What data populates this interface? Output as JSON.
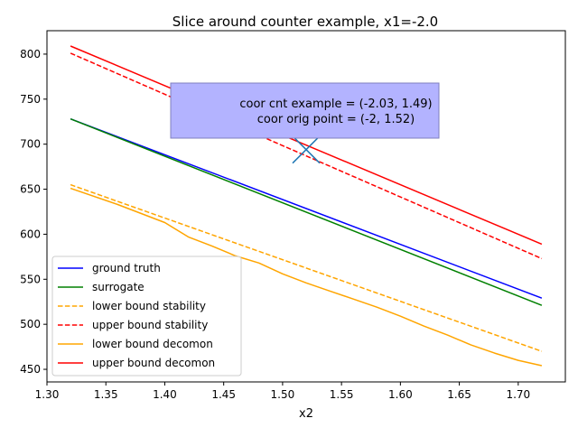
{
  "chart_data": {
    "type": "line",
    "title": "Slice around counter example, x1=-2.0",
    "xlabel": "x2",
    "ylabel": "",
    "xlim": [
      1.3,
      1.74
    ],
    "ylim": [
      436,
      826
    ],
    "xticks": [
      "1.30",
      "1.35",
      "1.40",
      "1.45",
      "1.50",
      "1.55",
      "1.60",
      "1.65",
      "1.70"
    ],
    "yticks": [
      "450",
      "500",
      "550",
      "600",
      "650",
      "700",
      "750",
      "800"
    ],
    "grid": false,
    "legend_position": "lower left",
    "series": [
      {
        "name": "ground truth",
        "color": "#0000ff",
        "dash": "solid",
        "x": [
          1.32,
          1.72
        ],
        "y": [
          728,
          529
        ]
      },
      {
        "name": "surrogate",
        "color": "#008000",
        "dash": "solid",
        "x": [
          1.32,
          1.72
        ],
        "y": [
          728,
          521
        ]
      },
      {
        "name": "lower bound stability",
        "color": "#ffa500",
        "dash": "dashed",
        "x": [
          1.32,
          1.72
        ],
        "y": [
          655,
          470
        ]
      },
      {
        "name": "upper bound stability",
        "color": "#ff0000",
        "dash": "dashed",
        "x": [
          1.32,
          1.72
        ],
        "y": [
          801,
          573
        ]
      },
      {
        "name": "lower bound decomon",
        "color": "#ffa500",
        "dash": "solid",
        "x": [
          1.32,
          1.36,
          1.4,
          1.42,
          1.44,
          1.46,
          1.48,
          1.5,
          1.52,
          1.54,
          1.56,
          1.58,
          1.6,
          1.62,
          1.64,
          1.66,
          1.68,
          1.7,
          1.72
        ],
        "y": [
          651,
          633,
          613,
          597,
          587,
          576,
          568,
          556,
          546,
          537,
          528,
          519,
          509,
          498,
          488,
          477,
          468,
          460,
          454
        ]
      },
      {
        "name": "upper bound decomon",
        "color": "#ff0000",
        "dash": "solid",
        "x": [
          1.32,
          1.72
        ],
        "y": [
          809,
          589
        ]
      }
    ],
    "annotation": {
      "lines": [
        "coor cnt example = (-2.03, 1.49)",
        "coor orig point = (-2, 1.52)"
      ],
      "box_color": "#b3b3ff",
      "marker_x": 1.52,
      "marker_y": 694,
      "marker_color": "#1f77b4"
    }
  }
}
